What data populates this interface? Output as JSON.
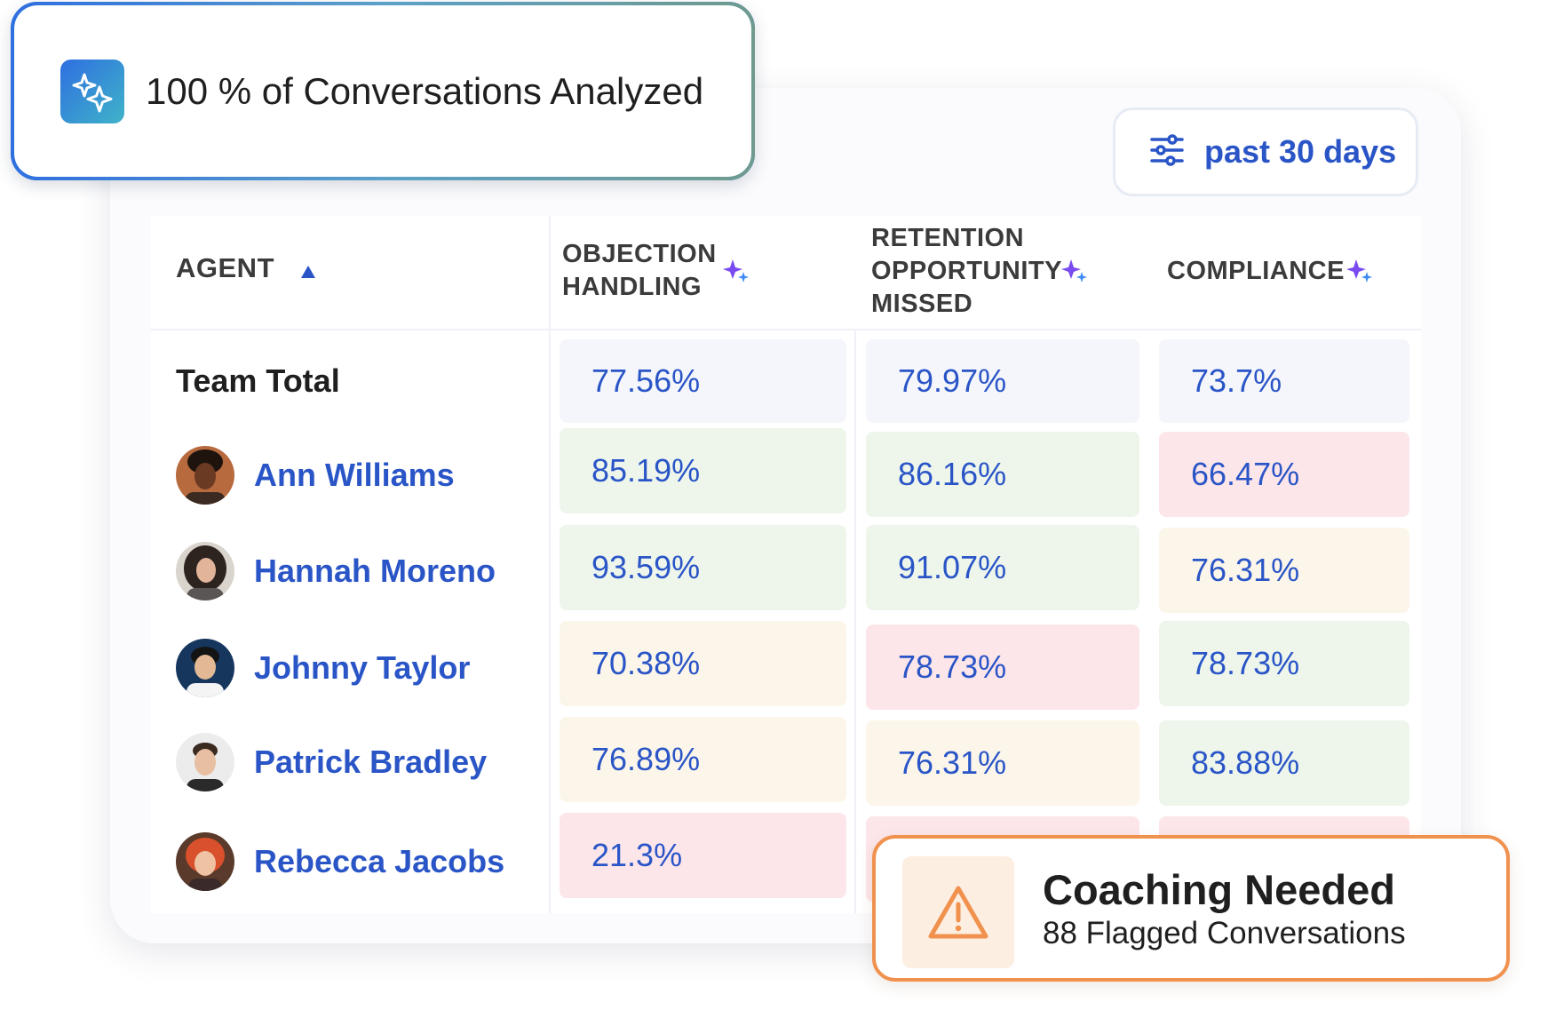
{
  "banner": {
    "icon": "sparkles-icon",
    "text": "100 % of Conversations Analyzed"
  },
  "filter": {
    "icon": "sliders-icon",
    "label": "past 30 days"
  },
  "table": {
    "headers": {
      "agent": "AGENT",
      "agent_sort": "ascending",
      "objection": [
        "OBJECTION",
        "HANDLING"
      ],
      "retention": [
        "RETENTION",
        "OPPORTUNITY",
        "MISSED"
      ],
      "compliance": "COMPLIANCE"
    },
    "team_total": {
      "label": "Team Total",
      "objection": "77.56%",
      "retention": "79.97%",
      "compliance": "73.7%"
    },
    "rows": [
      {
        "name": "Ann Williams",
        "objection": "85.19%",
        "retention": "86.16%",
        "compliance": "66.47%"
      },
      {
        "name": "Hannah Moreno",
        "objection": "93.59%",
        "retention": "91.07%",
        "compliance": "76.31%"
      },
      {
        "name": "Johnny Taylor",
        "objection": "70.38%",
        "retention": "78.73%",
        "compliance": "78.73%"
      },
      {
        "name": "Patrick Bradley",
        "objection": "76.89%",
        "retention": "76.31%",
        "compliance": "83.88%"
      },
      {
        "name": "Rebecca Jacobs",
        "objection": "21.3%",
        "retention": "",
        "compliance": ""
      }
    ]
  },
  "coaching": {
    "icon": "warning-icon",
    "title": "Coaching Needed",
    "subtitle": "88 Flagged Conversations"
  },
  "colors": {
    "accent": "#2a55c7",
    "green": "#eef6ec",
    "red": "#fde6ea",
    "yellow": "#fcf6ea",
    "neutral": "#f5f6fb",
    "warning": "#f0914e"
  }
}
